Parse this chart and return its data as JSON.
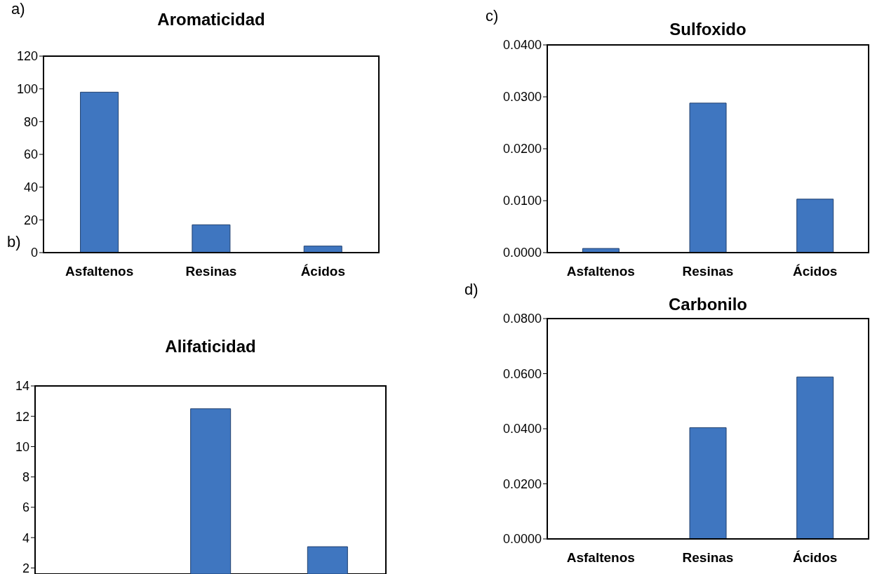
{
  "chart_data": [
    {
      "type": "bar",
      "title": "Aromaticidad",
      "annotations": [
        "a)"
      ],
      "categories": [
        "Asfaltenos",
        "Resinas",
        "Ácidos"
      ],
      "values": [
        98,
        17,
        4
      ],
      "color": "#3f76c0",
      "ylim": [
        0,
        120
      ],
      "yticks": [
        0,
        20,
        40,
        60,
        80,
        100,
        120
      ],
      "grid": false
    },
    {
      "type": "bar",
      "title": "Alifaticidad",
      "annotations": [
        "b)"
      ],
      "categories": [
        null,
        null,
        null
      ],
      "values": [
        null,
        12.5,
        3.4
      ],
      "color": "#3f76c0",
      "ylim": [
        1.6,
        14
      ],
      "yticks": [
        2,
        4,
        6,
        8,
        10,
        12,
        14
      ],
      "grid": false,
      "tick_labels": "y"
    },
    {
      "type": "bar",
      "title": "Sulfoxido",
      "annotations": [
        "c)"
      ],
      "categories": [
        "Asfaltenos",
        "Resinas",
        "Ácidos"
      ],
      "values": [
        0.0008,
        0.0288,
        0.0103
      ],
      "color": "#3f76c0",
      "ylim": [
        0,
        0.04
      ],
      "yticks": [
        {
          "value": 0,
          "label": "0.0000"
        },
        {
          "value": 0.01,
          "label": "0.0100"
        },
        {
          "value": 0.02,
          "label": "0.0200"
        },
        {
          "value": 0.03,
          "label": "0.0300"
        },
        {
          "value": 0.04,
          "label": "0.0400"
        }
      ],
      "grid": false
    },
    {
      "type": "bar",
      "title": "Carbonilo",
      "annotations": [
        "d)"
      ],
      "categories": [
        "Asfaltenos",
        "Resinas",
        "Ácidos"
      ],
      "values": [
        0,
        0.0404,
        0.0588
      ],
      "color": "#3f76c0",
      "ylim": [
        0,
        0.08
      ],
      "yticks": [
        {
          "value": 0,
          "label": "0.0000"
        },
        {
          "value": 0.02,
          "label": "0.0200"
        },
        {
          "value": 0.04,
          "label": "0.0400"
        },
        {
          "value": 0.06,
          "label": "0.0600"
        },
        {
          "value": 0.08,
          "label": "0.0800"
        }
      ],
      "grid": false
    }
  ]
}
